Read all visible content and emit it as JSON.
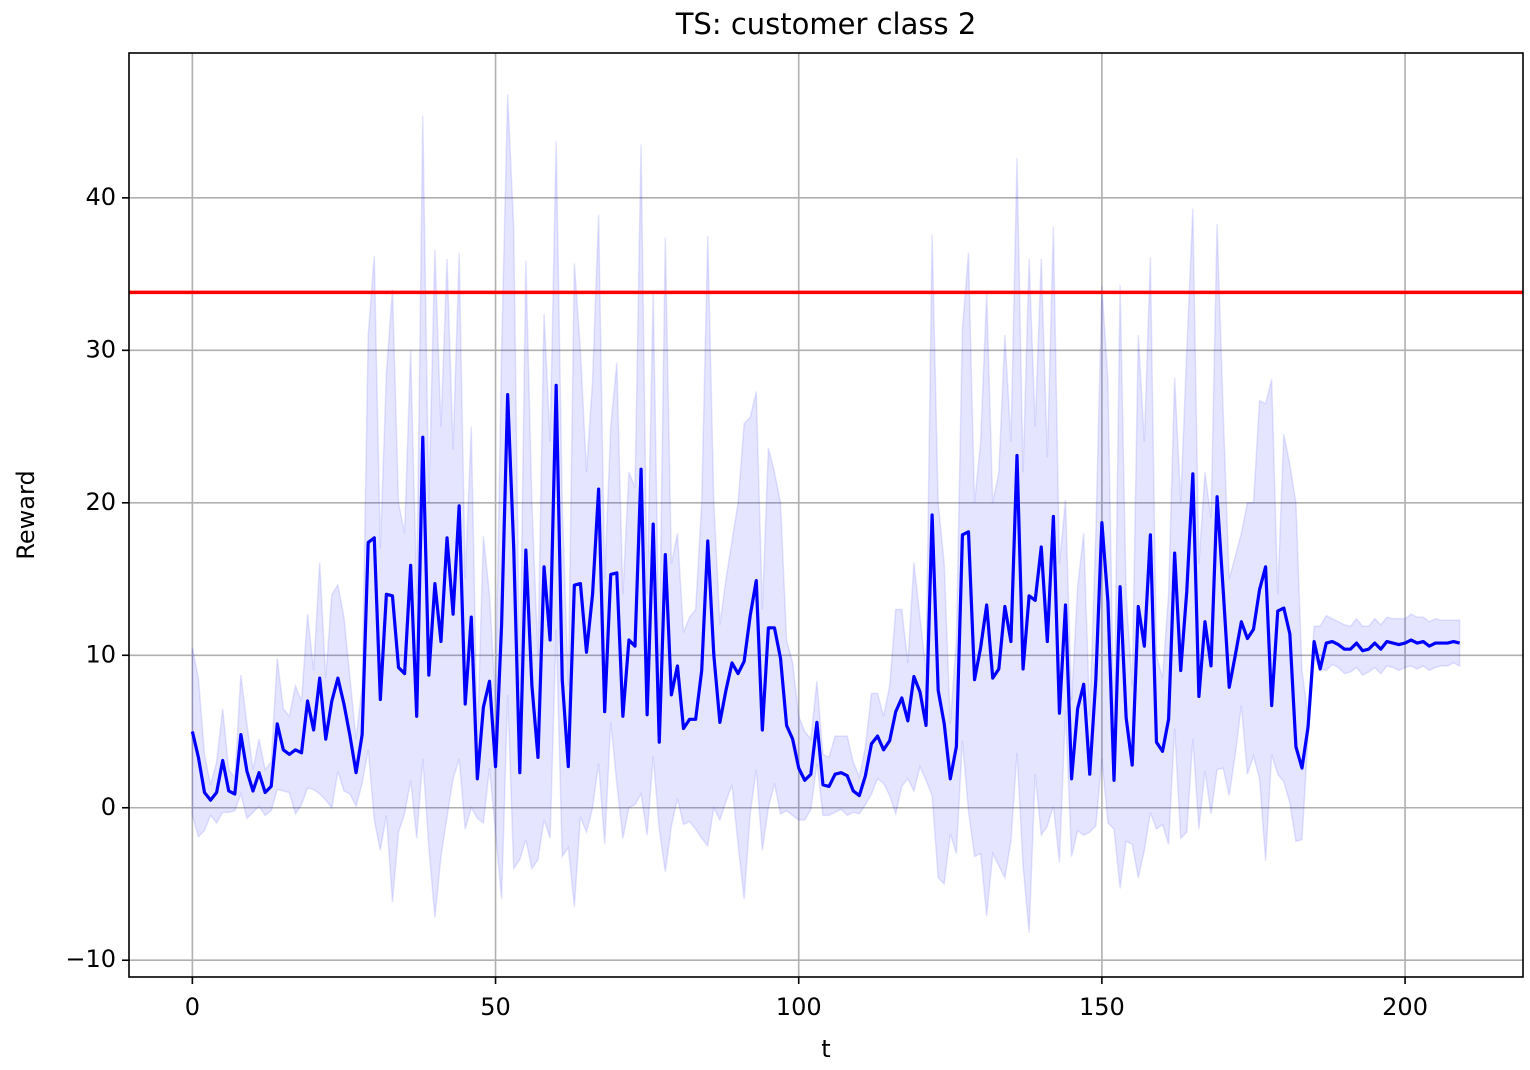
{
  "chart_data": {
    "type": "line",
    "title": "TS: customer class 2",
    "xlabel": "t",
    "ylabel": "Reward",
    "xlim": [
      -10.45,
      219.45
    ],
    "ylim": [
      -11.1,
      49.5
    ],
    "xticks": [
      0,
      50,
      100,
      150,
      200
    ],
    "yticks": [
      {
        "value": -10,
        "label": "−10"
      },
      0,
      10,
      20,
      30,
      40
    ],
    "grid": true,
    "x": [
      0,
      1,
      2,
      3,
      4,
      5,
      6,
      7,
      8,
      9,
      10,
      11,
      12,
      13,
      14,
      15,
      16,
      17,
      18,
      19,
      20,
      21,
      22,
      23,
      24,
      25,
      26,
      27,
      28,
      29,
      30,
      31,
      32,
      33,
      34,
      35,
      36,
      37,
      38,
      39,
      40,
      41,
      42,
      43,
      44,
      45,
      46,
      47,
      48,
      49,
      50,
      51,
      52,
      53,
      54,
      55,
      56,
      57,
      58,
      59,
      60,
      61,
      62,
      63,
      64,
      65,
      66,
      67,
      68,
      69,
      70,
      71,
      72,
      73,
      74,
      75,
      76,
      77,
      78,
      79,
      80,
      81,
      82,
      83,
      84,
      85,
      86,
      87,
      88,
      89,
      90,
      91,
      92,
      93,
      94,
      95,
      96,
      97,
      98,
      99,
      100,
      101,
      102,
      103,
      104,
      105,
      106,
      107,
      108,
      109,
      110,
      111,
      112,
      113,
      114,
      115,
      116,
      117,
      118,
      119,
      120,
      121,
      122,
      123,
      124,
      125,
      126,
      127,
      128,
      129,
      130,
      131,
      132,
      133,
      134,
      135,
      136,
      137,
      138,
      139,
      140,
      141,
      142,
      143,
      144,
      145,
      146,
      147,
      148,
      149,
      150,
      151,
      152,
      153,
      154,
      155,
      156,
      157,
      158,
      159,
      160,
      161,
      162,
      163,
      164,
      165,
      166,
      167,
      168,
      169,
      170,
      171,
      172,
      173,
      174,
      175,
      176,
      177,
      178,
      179,
      180,
      181,
      182,
      183,
      184,
      185,
      186,
      187,
      188,
      189,
      190,
      191,
      192,
      193,
      194,
      195,
      196,
      197,
      198,
      199,
      200,
      201,
      202,
      203,
      204,
      205,
      206,
      207,
      208,
      209
    ],
    "series": [
      {
        "color": "#0000ff",
        "values": [
          5.0,
          3.3,
          1.0,
          0.5,
          1.0,
          3.1,
          1.1,
          0.9,
          4.8,
          2.4,
          1.1,
          2.3,
          1.0,
          1.4,
          5.5,
          3.8,
          3.5,
          3.8,
          3.6,
          7.0,
          5.1,
          8.5,
          4.5,
          7.0,
          8.5,
          6.8,
          4.7,
          2.3,
          4.8,
          17.4,
          17.7,
          7.1,
          14.0,
          13.9,
          9.2,
          8.8,
          15.9,
          6.0,
          24.3,
          8.7,
          14.7,
          10.9,
          17.7,
          12.7,
          19.8,
          6.8,
          12.5,
          1.9,
          6.6,
          8.3,
          2.7,
          12.0,
          27.1,
          17.0,
          2.3,
          16.9,
          8.0,
          3.3,
          15.8,
          11.0,
          27.7,
          8.4,
          2.7,
          14.6,
          14.7,
          10.2,
          14.0,
          20.9,
          6.3,
          15.3,
          15.4,
          6.0,
          11.0,
          10.6,
          22.2,
          6.1,
          18.6,
          4.3,
          16.6,
          7.4,
          9.3,
          5.2,
          5.8,
          5.8,
          9.0,
          17.5,
          10.0,
          5.6,
          7.7,
          9.5,
          8.8,
          9.6,
          12.6,
          14.9,
          5.1,
          11.8,
          11.8,
          9.8,
          5.4,
          4.5,
          2.6,
          1.8,
          2.2,
          5.6,
          1.5,
          1.4,
          2.2,
          2.3,
          2.1,
          1.1,
          0.8,
          2.1,
          4.2,
          4.7,
          3.8,
          4.4,
          6.3,
          7.2,
          5.7,
          8.6,
          7.6,
          5.4,
          19.2,
          7.7,
          5.5,
          1.9,
          4.0,
          17.9,
          18.1,
          8.4,
          10.5,
          13.3,
          8.5,
          9.1,
          13.2,
          10.9,
          23.1,
          9.1,
          13.9,
          13.6,
          17.1,
          10.9,
          19.1,
          6.2,
          13.3,
          1.9,
          6.5,
          8.1,
          2.2,
          8.4,
          18.7,
          13.5,
          1.8,
          14.5,
          5.9,
          2.8,
          13.2,
          10.6,
          17.9,
          4.3,
          3.7,
          5.8,
          16.7,
          9.0,
          14.2,
          21.9,
          7.3,
          12.2,
          9.3,
          20.4,
          14.3,
          7.9,
          10.0,
          12.2,
          11.1,
          11.7,
          14.3,
          15.8,
          6.7,
          12.9,
          13.1,
          11.4,
          4.0,
          2.6,
          5.3,
          10.9,
          9.1,
          10.8,
          10.9,
          10.7,
          10.4,
          10.4,
          10.8,
          10.3,
          10.4,
          10.8,
          10.4,
          10.9,
          10.8,
          10.7,
          10.8,
          11.0,
          10.8,
          10.9,
          10.6,
          10.8,
          10.8,
          10.8,
          10.9,
          10.8
        ]
      }
    ],
    "band": {
      "color": "#0000ff",
      "upper": [
        10.5,
        8.5,
        3.5,
        1.5,
        3.0,
        6.5,
        2.5,
        2.0,
        8.7,
        5.5,
        2.5,
        4.5,
        2.5,
        3.0,
        9.8,
        6.5,
        6.0,
        8.0,
        7.0,
        12.7,
        9.0,
        16.1,
        8.5,
        14.0,
        14.6,
        12.5,
        8.5,
        4.5,
        8.0,
        31.0,
        36.2,
        17.0,
        28.5,
        34.0,
        20.0,
        18.0,
        30.0,
        14.0,
        45.4,
        20.0,
        36.6,
        25.0,
        36.0,
        23.5,
        36.4,
        15.0,
        25.0,
        4.5,
        17.8,
        14.0,
        7.0,
        30.0,
        46.8,
        38.0,
        8.0,
        35.9,
        20.0,
        10.0,
        32.4,
        24.0,
        43.7,
        20.0,
        8.0,
        35.7,
        30.0,
        22.0,
        28.0,
        38.9,
        15.0,
        25.0,
        29.2,
        14.0,
        22.0,
        21.0,
        43.5,
        14.0,
        33.8,
        10.0,
        37.4,
        16.0,
        18.0,
        11.5,
        12.5,
        13.0,
        20.0,
        37.5,
        20.0,
        12.0,
        15.0,
        17.5,
        20.0,
        25.2,
        25.6,
        27.3,
        13.0,
        23.6,
        22.0,
        20.0,
        11.0,
        9.5,
        6.0,
        5.0,
        4.5,
        8.3,
        3.5,
        3.3,
        4.7,
        4.7,
        4.7,
        3.0,
        2.0,
        4.0,
        7.5,
        7.5,
        6.0,
        8.0,
        13.0,
        13.0,
        9.5,
        16.1,
        12.5,
        9.0,
        37.6,
        20.0,
        16.0,
        5.5,
        11.0,
        31.4,
        36.4,
        20.0,
        24.0,
        33.7,
        20.0,
        22.0,
        31.0,
        24.0,
        42.6,
        22.0,
        36.0,
        25.0,
        36.0,
        23.0,
        38.1,
        16.0,
        20.2,
        7.0,
        14.5,
        18.0,
        6.0,
        18.0,
        34.2,
        28.0,
        5.0,
        34.3,
        14.0,
        8.0,
        31.0,
        24.0,
        36.1,
        10.0,
        8.5,
        14.0,
        28.2,
        20.0,
        30.0,
        39.3,
        16.0,
        22.0,
        19.0,
        38.3,
        26.0,
        15.0,
        16.5,
        18.0,
        20.0,
        20.0,
        26.7,
        26.5,
        28.1,
        14.0,
        24.5,
        22.5,
        20.0,
        9.0,
        6.0,
        11.9,
        11.9,
        12.6,
        12.4,
        12.2,
        12.0,
        11.9,
        12.4,
        11.9,
        11.9,
        12.4,
        12.0,
        12.5,
        12.4,
        12.4,
        12.4,
        12.7,
        12.5,
        12.5,
        12.2,
        12.4,
        12.3,
        12.3,
        12.3,
        12.3
      ],
      "lower": [
        -0.5,
        -1.9,
        -1.5,
        -0.5,
        -1.0,
        -0.3,
        -0.3,
        -0.2,
        0.9,
        -0.7,
        -0.3,
        0.1,
        -0.5,
        -0.2,
        1.2,
        1.1,
        1.0,
        -0.4,
        0.2,
        1.3,
        1.2,
        0.9,
        0.5,
        0.0,
        2.4,
        1.1,
        0.9,
        0.1,
        1.6,
        3.8,
        -0.8,
        -2.8,
        -0.5,
        -6.2,
        -1.6,
        -0.4,
        1.8,
        -2.0,
        3.2,
        -2.6,
        -7.2,
        -3.2,
        -0.6,
        1.9,
        3.2,
        -1.4,
        0.0,
        -0.7,
        -1.0,
        2.6,
        -1.6,
        -6.0,
        7.4,
        -4.0,
        -3.4,
        -2.1,
        -4.0,
        -3.4,
        -0.8,
        -2.0,
        11.7,
        -3.2,
        -2.6,
        -6.5,
        -0.6,
        -1.6,
        0.0,
        2.9,
        -2.4,
        5.6,
        1.6,
        -2.0,
        0.0,
        0.2,
        0.9,
        -1.8,
        3.4,
        -1.4,
        -4.2,
        -1.2,
        0.6,
        -1.1,
        -0.9,
        -1.4,
        -2.0,
        -2.5,
        0.0,
        -0.8,
        0.4,
        1.5,
        -2.4,
        -6.0,
        -0.4,
        2.5,
        -2.8,
        0.0,
        1.6,
        -0.4,
        -0.2,
        -0.5,
        -0.8,
        -0.8,
        -0.1,
        2.9,
        -0.5,
        -0.5,
        -0.3,
        -0.1,
        -0.5,
        -0.3,
        -0.4,
        0.2,
        0.9,
        1.9,
        1.6,
        0.8,
        -0.4,
        1.4,
        1.9,
        1.1,
        2.7,
        1.8,
        0.8,
        -4.6,
        -5.0,
        -1.7,
        -3.0,
        4.4,
        -0.2,
        -3.2,
        -3.0,
        -7.1,
        -3.0,
        -3.8,
        -4.6,
        -2.2,
        3.6,
        -3.8,
        -8.2,
        2.2,
        -1.8,
        -1.2,
        0.1,
        -3.6,
        6.4,
        -3.2,
        -1.5,
        -1.8,
        -1.6,
        -1.2,
        3.2,
        -1.0,
        -1.4,
        -5.3,
        -2.2,
        -2.4,
        -4.6,
        -2.8,
        -0.3,
        -1.4,
        -1.1,
        -2.4,
        5.2,
        -2.0,
        -1.6,
        4.5,
        -1.4,
        2.4,
        -0.4,
        2.5,
        2.6,
        0.8,
        3.5,
        6.7,
        2.2,
        3.4,
        1.9,
        -3.5,
        3.5,
        2.2,
        1.7,
        0.3,
        -2.2,
        -2.1,
        4.6,
        9.9,
        9.1,
        9.0,
        9.4,
        9.2,
        8.8,
        8.9,
        9.2,
        8.7,
        8.9,
        9.2,
        8.8,
        9.3,
        9.2,
        9.0,
        9.2,
        9.3,
        9.1,
        9.3,
        9.0,
        9.2,
        9.3,
        9.3,
        9.5,
        9.3
      ]
    },
    "hlines": [
      {
        "y": 33.8,
        "color": "#ff0000"
      }
    ]
  }
}
